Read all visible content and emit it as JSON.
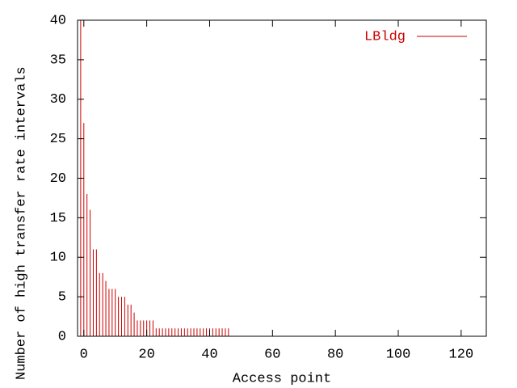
{
  "chart_data": {
    "type": "impulse",
    "xlabel": "Access point",
    "ylabel": "Number of high transfer rate intervals",
    "xlim": [
      -2,
      128
    ],
    "ylim": [
      0,
      40
    ],
    "xticks": [
      0,
      20,
      40,
      60,
      80,
      100,
      120
    ],
    "yticks": [
      0,
      5,
      10,
      15,
      20,
      25,
      30,
      35,
      40
    ],
    "legend": "top-right",
    "series": [
      {
        "name": "LBldg",
        "color": "#cc0000",
        "x": [
          -1,
          0,
          1,
          2,
          3,
          4,
          5,
          6,
          7,
          8,
          9,
          10,
          11,
          12,
          13,
          14,
          15,
          16,
          17,
          18,
          19,
          20,
          21,
          22,
          23,
          24,
          25,
          26,
          27,
          28,
          29,
          30,
          31,
          32,
          33,
          34,
          35,
          36,
          37,
          38,
          39,
          40,
          41,
          42,
          43,
          44,
          45,
          46,
          47,
          48,
          49,
          50,
          51,
          52,
          53,
          54,
          55,
          56,
          57,
          58,
          59,
          60,
          61,
          62,
          63,
          64,
          65,
          66,
          67,
          68,
          69,
          70,
          71,
          72,
          73,
          74,
          75,
          76,
          77,
          78,
          79,
          80,
          81,
          82,
          83,
          84,
          85,
          86,
          87,
          88,
          89,
          90,
          91,
          92,
          93,
          94,
          95,
          96,
          97,
          98,
          99,
          100,
          101,
          102,
          103,
          104,
          105,
          106,
          107,
          108,
          109,
          110,
          111,
          112,
          113,
          114,
          115,
          116,
          117,
          118,
          119,
          120,
          121,
          122,
          123,
          124,
          125,
          126,
          127
        ],
        "values": [
          40,
          27,
          18,
          16,
          11,
          11,
          8,
          8,
          7,
          6,
          6,
          6,
          5,
          5,
          5,
          4,
          4,
          3,
          2,
          2,
          2,
          2,
          2,
          2,
          1,
          1,
          1,
          1,
          1,
          1,
          1,
          1,
          1,
          1,
          1,
          1,
          1,
          1,
          1,
          1,
          1,
          1,
          1,
          1,
          1,
          1,
          1,
          1,
          0,
          0,
          0,
          0,
          0,
          0,
          0,
          0,
          0,
          0,
          0,
          0,
          0,
          0,
          0,
          0,
          0,
          0,
          0,
          0,
          0,
          0,
          0,
          0,
          0,
          0,
          0,
          0,
          0,
          0,
          0,
          0,
          0,
          0,
          0,
          0,
          0,
          0,
          0,
          0,
          0,
          0,
          0,
          0,
          0,
          0,
          0,
          0,
          0,
          0,
          0,
          0,
          0,
          0,
          0,
          0,
          0,
          0,
          0,
          0,
          0,
          0,
          0,
          0,
          0,
          0,
          0,
          0,
          0,
          0,
          0,
          0,
          0,
          0,
          0,
          0,
          0,
          0,
          0,
          0,
          0
        ]
      }
    ]
  }
}
